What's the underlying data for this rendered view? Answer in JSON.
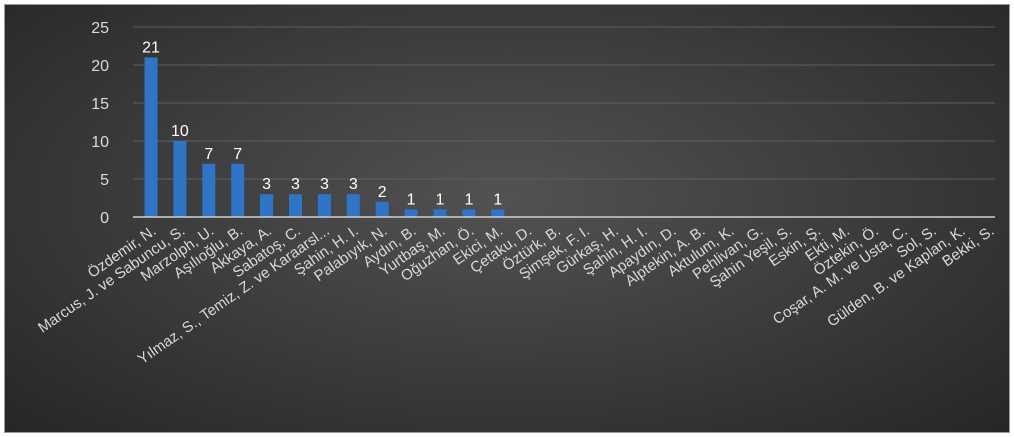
{
  "chart_data": {
    "type": "bar",
    "title": "",
    "xlabel": "",
    "ylabel": "",
    "ylim": [
      0,
      25
    ],
    "yticks": [
      0,
      5,
      10,
      15,
      20,
      25
    ],
    "grid": true,
    "legend": "none",
    "bar_color": "#2e75c8",
    "categories": [
      "Özdemir, N.",
      "Marcus, J. ve Sabuncu, S.",
      "Marzolph, U.",
      "Aşılıoğlu, B.",
      "Akkaya, A.",
      "Sabatoş, C.",
      "Yılmaz, S., Temiz, Z. ve Karaarsl...",
      "Şahin, H. I.",
      "Palabıyık, N.",
      "Aydın, B.",
      "Yurtbaş, M.",
      "Oğuzhan, Ö.",
      "Ekici, M.",
      "Çetaku, D.",
      "Öztürk, B.",
      "Şimşek, F. I.",
      "Gürkaş, H.",
      "Şahin, H. I.",
      "Apaydın, D.",
      "Alptekin, A. B.",
      "Aktulum, K.",
      "Pehlivan, G.",
      "Şahin Yeşil, S.",
      "Eskin, Ş.",
      "Ekti, M.",
      "Öztekin, Ö.",
      "Coşar, A. M. ve Usta, C.",
      "Sol, S.",
      "Gülden, B. ve Kaplan, K.",
      "Bekki, S."
    ],
    "values": [
      21,
      10,
      7,
      7,
      3,
      3,
      3,
      3,
      2,
      1,
      1,
      1,
      1,
      0,
      0,
      0,
      0,
      0,
      0,
      0,
      0,
      0,
      0,
      0,
      0,
      0,
      0,
      0,
      0,
      0
    ],
    "data_labels": [
      "21",
      "10",
      "7",
      "7",
      "3",
      "3",
      "3",
      "3",
      "2",
      "1",
      "1",
      "1",
      "1",
      "",
      "",
      "",
      "",
      "",
      "",
      "",
      "",
      "",
      "",
      "",
      "",
      "",
      "",
      "",
      "",
      ""
    ]
  }
}
